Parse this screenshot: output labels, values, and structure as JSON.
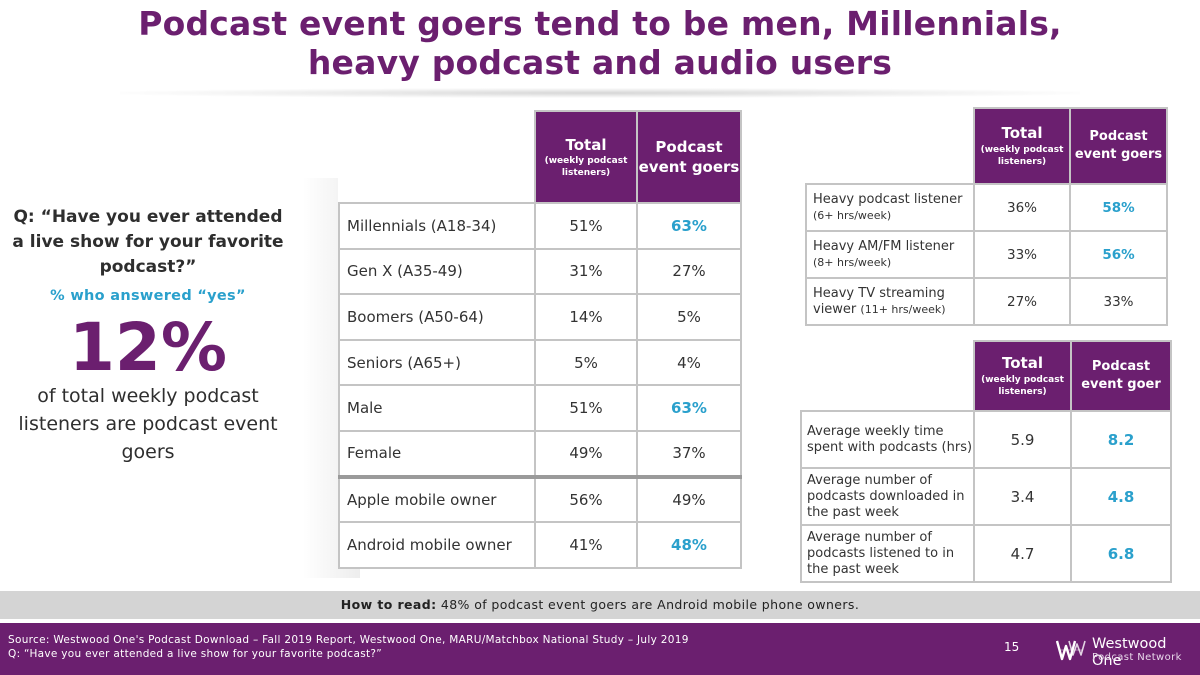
{
  "title": {
    "line1": "Podcast event goers tend to be men, Millennials,",
    "line2": "heavy podcast and audio users"
  },
  "left": {
    "question": "Q: “Have you ever attended a live show for your favorite podcast?”",
    "subtitle": "% who answered “yes”",
    "big_value": "12%",
    "description": "of total weekly podcast listeners are podcast event goers"
  },
  "demographics": {
    "headers": {
      "total_main": "Total",
      "total_sub": "(weekly podcast listeners)",
      "goers": "Podcast event goers"
    },
    "rows": [
      {
        "label": "Millennials (A18-34)",
        "total": "51%",
        "goers": "63%"
      },
      {
        "label": "Gen X (A35-49)",
        "total": "31%",
        "goers": "27%"
      },
      {
        "label": "Boomers (A50-64)",
        "total": "14%",
        "goers": "5%"
      },
      {
        "label": "Seniors (A65+)",
        "total": "5%",
        "goers": "4%"
      },
      {
        "label": "Male",
        "total": "51%",
        "goers": "63%"
      },
      {
        "label": "Female",
        "total": "49%",
        "goers": "37%"
      },
      {
        "label": "Apple mobile owner",
        "total": "56%",
        "goers": "49%"
      },
      {
        "label": "Android mobile owner",
        "total": "41%",
        "goers": "48%"
      }
    ]
  },
  "usage": {
    "headers": {
      "total_main": "Total",
      "total_sub": "(weekly podcast listeners)",
      "goers": "Podcast event goers"
    },
    "rows": [
      {
        "label_main": "Heavy podcast listener",
        "label_sub": "(6+ hrs/week)",
        "total": "36%",
        "goers": "58%"
      },
      {
        "label_main": "Heavy AM/FM listener",
        "label_sub": "(8+ hrs/week)",
        "total": "33%",
        "goers": "56%"
      },
      {
        "label_main": "Heavy TV streaming viewer",
        "label_sub": "(11+ hrs/week)",
        "total": "27%",
        "goers": "33%"
      }
    ]
  },
  "averages": {
    "headers": {
      "total_main": "Total",
      "total_sub": "(weekly podcast listeners)",
      "goer": "Podcast event goer"
    },
    "rows": [
      {
        "label": "Average weekly time spent with podcasts (hrs)",
        "total": "5.9",
        "goer": "8.2"
      },
      {
        "label": "Average number of podcasts downloaded in the past week",
        "total": "3.4",
        "goer": "4.8"
      },
      {
        "label": "Average number of podcasts listened to in the past week",
        "total": "4.7",
        "goer": "6.8"
      }
    ]
  },
  "how_to_read": {
    "label": "How to read:",
    "text": "48% of podcast event goers are Android mobile phone owners."
  },
  "footer": {
    "source": "Source: Westwood One's Podcast Download – Fall 2019 Report, Westwood One, MARU/Matchbox National Study – July 2019",
    "question": "Q: “Have you ever attended a live show for your favorite podcast?”",
    "page_number": "15",
    "logo_name": "Westwood One",
    "logo_sub": "Podcast Network"
  },
  "colors": {
    "brand_purple": "#6b1f6f",
    "highlight_blue": "#2aa0cc",
    "howto_gray": "#d4d4d4"
  }
}
